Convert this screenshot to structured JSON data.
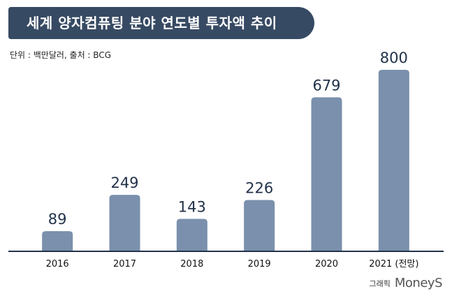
{
  "header": {
    "title": "세계 양자컴퓨팅 분야 연도별 투자액 추이",
    "unit_note": "단위 : 백만달러, 출처 : BCG"
  },
  "credit": {
    "text": "그래픽",
    "logo": "MoneyS"
  },
  "colors": {
    "banner": "#374a63",
    "bar": "#7a90ac",
    "baseline": "#22324a",
    "label": "#22324a"
  },
  "chart_data": {
    "type": "bar",
    "title": "세계 양자컴퓨팅 분야 연도별 투자액 추이",
    "categories": [
      "2016",
      "2017",
      "2018",
      "2019",
      "2020",
      "2021 (전망)"
    ],
    "values": [
      89,
      249,
      143,
      226,
      679,
      800
    ],
    "data_labels": [
      "89",
      "249",
      "143",
      "226",
      "679",
      "800"
    ],
    "xlabel": "",
    "ylabel": "",
    "ylim": [
      0,
      800
    ],
    "grid": false,
    "legend": "none"
  }
}
